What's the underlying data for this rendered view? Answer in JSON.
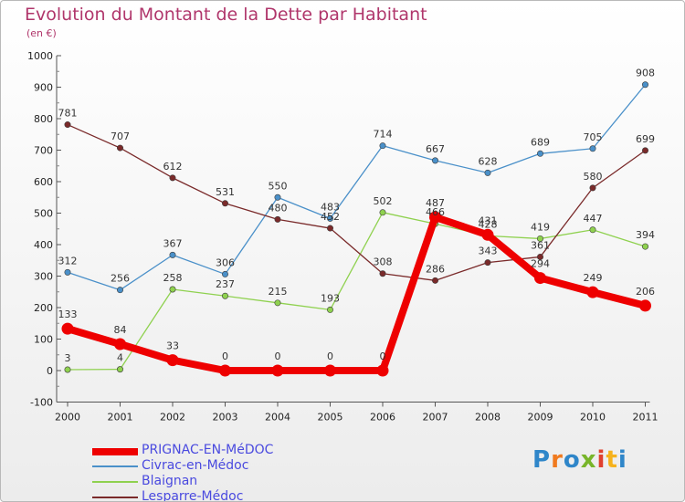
{
  "title": "Evolution du Montant de la Dette par Habitant",
  "subtitle": "(en €)",
  "logo": {
    "text": "Proxiti",
    "colors": [
      "#2f86c9",
      "#f07a1f",
      "#2f86c9",
      "#78b52a",
      "#e0402e",
      "#f6b21c",
      "#2f86c9"
    ]
  },
  "chart_data": {
    "type": "line",
    "title": "Evolution du Montant de la Dette par Habitant",
    "ylabel": "(en €)",
    "x": [
      "2000",
      "2001",
      "2002",
      "2003",
      "2004",
      "2005",
      "2006",
      "2007",
      "2008",
      "2009",
      "2010",
      "2011"
    ],
    "ylim": [
      -100,
      1000
    ],
    "yticks": [
      -100,
      0,
      100,
      200,
      300,
      400,
      500,
      600,
      700,
      800,
      900,
      1000
    ],
    "grid": false,
    "legend": "bottom-left",
    "series": [
      {
        "name": "Civrac-en-Médoc",
        "color": "#4a90c9",
        "values": [
          312,
          256,
          367,
          306,
          550,
          483,
          714,
          667,
          628,
          689,
          705,
          908
        ]
      },
      {
        "name": "Blaignan",
        "color": "#8fd14f",
        "values": [
          3,
          4,
          258,
          237,
          215,
          193,
          502,
          466,
          428,
          419,
          447,
          394
        ]
      },
      {
        "name": "Lesparre-Médoc",
        "color": "#7a2a2a",
        "values": [
          781,
          707,
          612,
          531,
          480,
          452,
          308,
          286,
          343,
          361,
          580,
          699
        ]
      },
      {
        "name": "PRIGNAC-EN-MéDOC",
        "color": "#ee0000",
        "values": [
          133,
          84,
          33,
          0,
          0,
          0,
          0,
          487,
          431,
          294,
          249,
          206
        ]
      }
    ]
  }
}
